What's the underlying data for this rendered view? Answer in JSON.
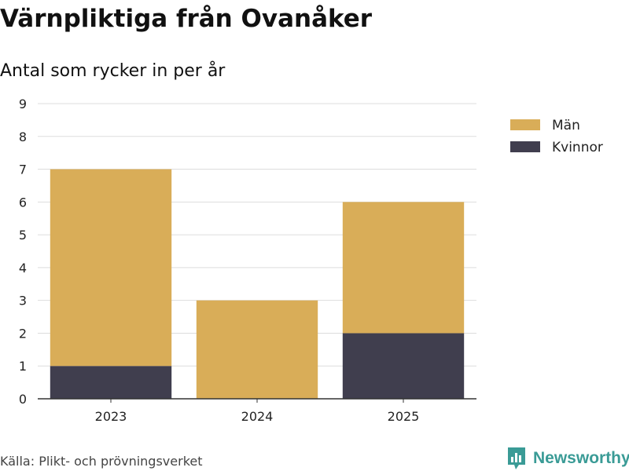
{
  "title": "Värnpliktiga från Ovanåker",
  "subtitle": "Antal som rycker in per år",
  "source": "Källa: Plikt- och prövningsverket",
  "brand": {
    "name": "Newsworthy",
    "color": "#3a9b96",
    "icon": "newsworthy-logo-icon"
  },
  "colors": {
    "man": "#d9ad58",
    "kvinnor": "#403e4e",
    "grid": "#dddddd",
    "axis": "#333333"
  },
  "chart_data": {
    "type": "bar",
    "stacked": true,
    "categories": [
      "2023",
      "2024",
      "2025"
    ],
    "series": [
      {
        "name": "Kvinnor",
        "values": [
          1,
          0,
          2
        ],
        "color": "#403e4e"
      },
      {
        "name": "Män",
        "values": [
          6,
          3,
          4
        ],
        "color": "#d9ad58"
      }
    ],
    "legend": [
      "Män",
      "Kvinnor"
    ],
    "legend_position": "right",
    "ylim": [
      0,
      9
    ],
    "yticks": [
      0,
      1,
      2,
      3,
      4,
      5,
      6,
      7,
      8,
      9
    ],
    "grid": true,
    "title": "Värnpliktiga från Ovanåker",
    "subtitle": "Antal som rycker in per år",
    "xlabel": "",
    "ylabel": ""
  }
}
